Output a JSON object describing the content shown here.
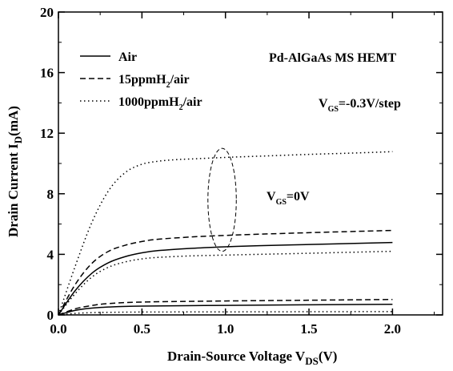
{
  "chart_data": {
    "type": "line",
    "title": "",
    "xlabel": "Drain-Source Voltage V",
    "xlabel_sub": "DS",
    "xlabel_suffix": "(V)",
    "ylabel": "Drain Current I",
    "ylabel_sub": "D",
    "ylabel_suffix": "(mA)",
    "xlim": [
      0.0,
      2.3
    ],
    "ylim": [
      0,
      20
    ],
    "xticks": [
      "0.0",
      "0.5",
      "1.0",
      "1.5",
      "2.0"
    ],
    "xtick_values": [
      0.0,
      0.5,
      1.0,
      1.5,
      2.0
    ],
    "yticks": [
      "0",
      "4",
      "8",
      "12",
      "16",
      "20"
    ],
    "ytick_values": [
      0,
      4,
      8,
      12,
      16,
      20
    ],
    "grid": false,
    "legend_position": "top-left",
    "series": [
      {
        "name": "Air",
        "style": "solid",
        "curves": [
          {
            "vgs": "0V",
            "x": [
              0,
              0.1,
              0.2,
              0.3,
              0.4,
              0.5,
              0.6,
              0.8,
              1.0,
              1.2,
              1.5,
              1.8,
              2.0
            ],
            "y": [
              0,
              1.6,
              2.75,
              3.45,
              3.85,
              4.1,
              4.25,
              4.4,
              4.5,
              4.57,
              4.65,
              4.73,
              4.78
            ]
          },
          {
            "vgs": "-0.3V",
            "x": [
              0,
              0.1,
              0.2,
              0.3,
              0.5,
              1.0,
              1.5,
              2.0
            ],
            "y": [
              0,
              0.3,
              0.45,
              0.52,
              0.58,
              0.63,
              0.67,
              0.7
            ]
          }
        ]
      },
      {
        "name": "15ppmH2/air",
        "style": "dashed",
        "curves": [
          {
            "vgs": "0V",
            "x": [
              0,
              0.1,
              0.2,
              0.3,
              0.4,
              0.5,
              0.6,
              0.8,
              1.0,
              1.2,
              1.5,
              1.8,
              2.0
            ],
            "y": [
              0,
              2.0,
              3.4,
              4.2,
              4.6,
              4.85,
              5.0,
              5.15,
              5.25,
              5.33,
              5.43,
              5.52,
              5.58
            ]
          },
          {
            "vgs": "-0.3V",
            "x": [
              0,
              0.1,
              0.2,
              0.3,
              0.5,
              1.0,
              1.5,
              2.0
            ],
            "y": [
              0,
              0.4,
              0.62,
              0.75,
              0.85,
              0.92,
              0.97,
              1.02
            ]
          }
        ]
      },
      {
        "name": "1000ppmH2/air",
        "style": "dotted",
        "curves": [
          {
            "vgs": "0V",
            "x": [
              0,
              0.1,
              0.2,
              0.3,
              0.4,
              0.5,
              0.6,
              0.7,
              0.8,
              1.0,
              1.2,
              1.5,
              1.8,
              2.0
            ],
            "y": [
              0,
              3.2,
              6.1,
              8.2,
              9.4,
              9.95,
              10.15,
              10.25,
              10.3,
              10.4,
              10.48,
              10.6,
              10.7,
              10.78
            ]
          },
          {
            "vgs": "-0.3V",
            "x": [
              0,
              0.1,
              0.2,
              0.3,
              0.4,
              0.5,
              0.6,
              0.8,
              1.0,
              1.2,
              1.5,
              1.8,
              2.0
            ],
            "y": [
              0,
              1.4,
              2.5,
              3.15,
              3.5,
              3.7,
              3.8,
              3.9,
              3.95,
              4.0,
              4.07,
              4.15,
              4.2
            ]
          },
          {
            "vgs": "-0.6V",
            "x": [
              0,
              0.1,
              0.2,
              0.3,
              0.5,
              1.0,
              1.5,
              2.0
            ],
            "y": [
              0,
              0.1,
              0.15,
              0.17,
              0.19,
              0.2,
              0.21,
              0.22
            ]
          }
        ]
      }
    ],
    "annotations": {
      "device": "Pd-AlGaAs MS HEMT",
      "vgs_step_prefix": "V",
      "vgs_step_sub": "GS",
      "vgs_step_suffix": "=-0.3V/step",
      "vgs0_prefix": "V",
      "vgs0_sub": "GS",
      "vgs0_suffix": "=0V"
    },
    "ellipse": {
      "cx": 0.98,
      "cy": 7.6,
      "rx": 0.085,
      "ry": 3.4
    }
  },
  "legend": {
    "air": "Air",
    "h15_prefix": "15ppmH",
    "h15_sub": "2",
    "h15_suffix": "/air",
    "h1000_prefix": "1000ppmH",
    "h1000_sub": "2",
    "h1000_suffix": "/air"
  }
}
